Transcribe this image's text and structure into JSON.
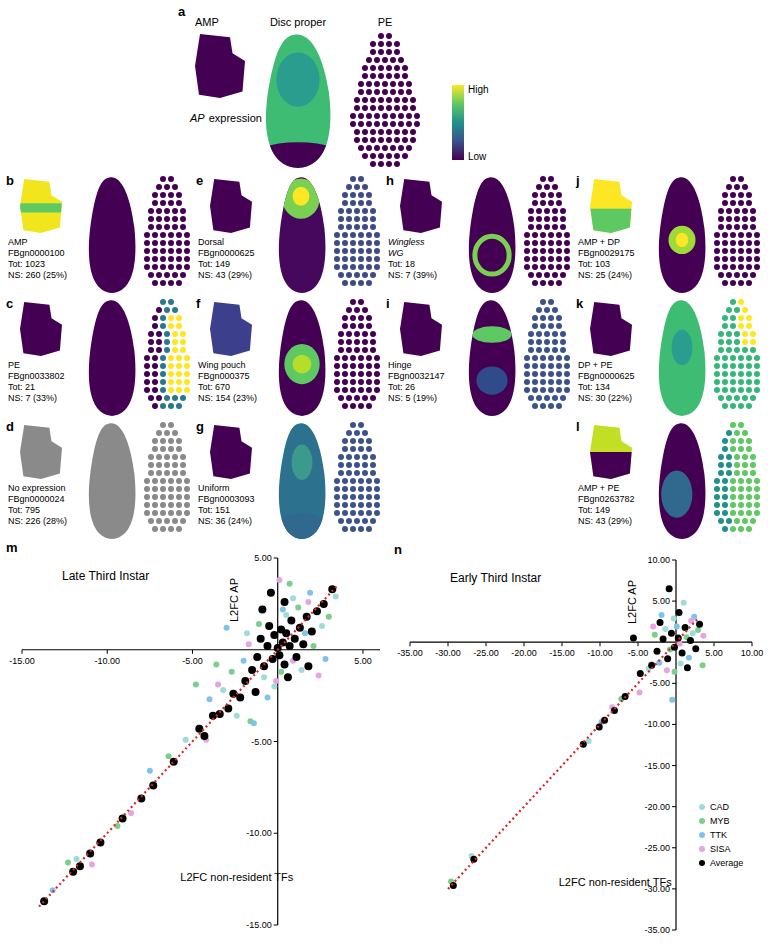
{
  "panel_a": {
    "letter": "a",
    "titles": [
      "AMP",
      "Disc proper",
      "PE"
    ],
    "caption": [
      "AP",
      "expression"
    ],
    "colorbar": [
      "High",
      "Low"
    ]
  },
  "panels": [
    {
      "letter": "b",
      "lines": [
        "AMP",
        "FBgn0000100",
        "Tot: 1023",
        "NS: 260 (25%)"
      ]
    },
    {
      "letter": "c",
      "lines": [
        "PE",
        "FBgn0033802",
        "Tot: 21",
        "NS: 7 (33%)"
      ]
    },
    {
      "letter": "d",
      "lines": [
        "No expression",
        "FBgn0000024",
        "Tot: 795",
        "NS: 226 (28%)"
      ]
    },
    {
      "letter": "e",
      "lines": [
        "Dorsal",
        "FBgn0000625",
        "Tot: 149",
        "NS: 43 (29%)"
      ]
    },
    {
      "letter": "f",
      "lines": [
        "Wing pouch",
        "FBgn000375",
        "Tot: 670",
        "NS: 154 (23%)"
      ]
    },
    {
      "letter": "g",
      "lines": [
        "Uniform",
        "FBgn0003093",
        "Tot: 151",
        "NS: 36 (24%)"
      ]
    },
    {
      "letter": "h",
      "lines": [
        "Wingless",
        "WG",
        "Tot: 18",
        "NS: 7 (39%)"
      ]
    },
    {
      "letter": "i",
      "lines": [
        "Hinge",
        "FBgn0032147",
        "Tot: 26",
        "NS: 5 (19%)"
      ]
    },
    {
      "letter": "j",
      "lines": [
        "AMP + DP",
        "FBgn0029175",
        "Tot: 103",
        "NS: 25 (24%)"
      ]
    },
    {
      "letter": "k",
      "lines": [
        "DP + PE",
        "FBgn0000625",
        "Tot: 134",
        "NS: 30 (22%)"
      ]
    },
    {
      "letter": "l",
      "lines": [
        "AMP + PE",
        "FBgn0263782",
        "Tot: 149",
        "NS: 43 (29%)"
      ]
    }
  ],
  "chart_data": [
    {
      "type": "scatter",
      "label": "m",
      "title": "Late Third Instar",
      "xlabel": "L2FC non-resident TFs",
      "ylabel": "L2FC AP",
      "xlim": [
        -15,
        6
      ],
      "ylim": [
        -15,
        5
      ],
      "xticks": [
        {
          "value": -15,
          "label": "-15.00"
        },
        {
          "value": -10,
          "label": "-10.00"
        },
        {
          "value": -5,
          "label": "-5.00"
        },
        {
          "value": 5,
          "label": "5.00"
        }
      ],
      "yticks": [
        {
          "value": 5,
          "label": "5.00"
        },
        {
          "value": -5,
          "label": "-5.00"
        },
        {
          "value": -10,
          "label": "-10.00"
        },
        {
          "value": -15,
          "label": "-15.00"
        }
      ],
      "series": [
        {
          "name": "CAD",
          "color": "#9fdcd8",
          "marker": "circle",
          "x": [
            -3.2,
            -1.8,
            -0.8,
            0.5,
            1.4,
            2.6,
            -5.4,
            -11.8,
            -2.4,
            0.9,
            -0.2,
            3.4
          ],
          "values": [
            -2.2,
            0.9,
            -1.5,
            1.9,
            -1.1,
            1.3,
            -4.9,
            -11.4,
            -3.6,
            2.8,
            -2,
            2.9
          ]
        },
        {
          "name": "MYB",
          "color": "#7ccf8a",
          "marker": "circle",
          "x": [
            -4.8,
            -3.6,
            -2.7,
            -1.1,
            0.2,
            1.2,
            2.1,
            -6.4,
            -9.4,
            -12.3,
            -1.6,
            0.7,
            3
          ],
          "values": [
            -1.9,
            -0.8,
            -1.2,
            1.4,
            -1.2,
            2.3,
            0.2,
            -5.8,
            -9.6,
            -11.6,
            -3.9,
            3.6,
            1.8
          ]
        },
        {
          "name": "TTK",
          "color": "#7fc3ec",
          "marker": "circle",
          "x": [
            -4,
            -2,
            -0.6,
            0.3,
            1.6,
            2.8,
            -7.5,
            -13.2,
            -3,
            1.9,
            -1.4
          ],
          "values": [
            -2.7,
            -0.6,
            -2.6,
            2.2,
            0.9,
            -0.5,
            -6.6,
            -13.1,
            1.2,
            3.1,
            -4
          ]
        },
        {
          "name": "SISA",
          "color": "#e6a4e3",
          "marker": "circle",
          "x": [
            -3.5,
            -1.7,
            -0.1,
            0.9,
            1.8,
            2.4,
            -8.6,
            -10.9,
            -4.2,
            0.1
          ],
          "values": [
            -1.9,
            0.3,
            -1.7,
            -0.6,
            2.6,
            -1.4,
            -8.9,
            -11.7,
            -4.9,
            3.8
          ]
        },
        {
          "name": "Average",
          "color": "#000000",
          "marker": "circle",
          "x": [
            -13.7,
            -12,
            -11.6,
            -11,
            -10.4,
            -9.1,
            -8,
            -7.3,
            -6.1,
            -4.6,
            -4.3,
            -3.8,
            -3.4,
            -2.9,
            -2.6,
            -2.2,
            -1.9,
            -1.5,
            -1.2,
            -1,
            -0.8,
            -0.6,
            -0.5,
            -0.3,
            -0.2,
            0,
            0.1,
            0.2,
            0.3,
            0.4,
            0.5,
            0.7,
            0.8,
            1,
            1.1,
            1.3,
            1.5,
            1.7,
            2,
            2.3,
            2.7,
            3.2,
            -0.9,
            0.4,
            -1.3,
            0.6,
            1.8,
            -0.4
          ],
          "values": [
            -13.7,
            -12.1,
            -11.8,
            -11.1,
            -10.5,
            -9.2,
            -8.1,
            -7.4,
            -6.1,
            -4.3,
            -4.7,
            -3.6,
            -3.5,
            -3.2,
            -2.4,
            -2.6,
            -1.7,
            -1.1,
            -0.4,
            0.6,
            -0.9,
            0.2,
            1.3,
            -0.5,
            0.8,
            0.1,
            -0.3,
            1.1,
            0.4,
            -0.8,
            0.9,
            0.2,
            1.6,
            0.6,
            -0.4,
            1.2,
            0.3,
            1.8,
            1,
            2.1,
            2.5,
            3.3,
            2.2,
            2.6,
            -2.3,
            -1.5,
            -0.9,
            3.1
          ]
        },
        {
          "type": "line",
          "color": "#d62728",
          "line_style": "dotted",
          "x": [
            -14,
            3.5
          ],
          "values": [
            -14,
            3.5
          ]
        }
      ]
    },
    {
      "type": "scatter",
      "label": "n",
      "title": "Early Third Instar",
      "xlabel": "L2FC non-resident TFs",
      "ylabel": "L2FC AP",
      "xlim": [
        -35,
        10
      ],
      "ylim": [
        -35,
        10
      ],
      "legend": "right",
      "xticks": [
        {
          "value": -35,
          "label": "-35.00"
        },
        {
          "value": -30,
          "label": "-30.00"
        },
        {
          "value": -25,
          "label": "-25.00"
        },
        {
          "value": -20,
          "label": "-20.00"
        },
        {
          "value": -15,
          "label": "-15.00"
        },
        {
          "value": -10,
          "label": "-10.00"
        },
        {
          "value": -5,
          "label": "-5.00"
        },
        {
          "value": 5,
          "label": "5.00"
        },
        {
          "value": 10,
          "label": "10.00"
        }
      ],
      "yticks": [
        {
          "value": 10,
          "label": "10.00"
        },
        {
          "value": 5,
          "label": "5.00"
        },
        {
          "value": -5,
          "label": "-5.00"
        },
        {
          "value": -10,
          "label": "-10.00"
        },
        {
          "value": -15,
          "label": "-15.00"
        },
        {
          "value": -20,
          "label": "-20.00"
        },
        {
          "value": -25,
          "label": "-25.00"
        },
        {
          "value": -30,
          "label": "-30.00"
        },
        {
          "value": -35,
          "label": "-35.00"
        }
      ],
      "series": [
        {
          "name": "CAD",
          "color": "#9fdcd8",
          "marker": "circle",
          "x": [
            -3.6,
            -1.4,
            0.6,
            2.2,
            -0.3,
            -11.5,
            -26.9,
            1
          ],
          "values": [
            -3.2,
            1.6,
            -2.6,
            1.1,
            2.9,
            -12,
            -26,
            4.8
          ]
        },
        {
          "name": "MYB",
          "color": "#7ccf8a",
          "marker": "circle",
          "x": [
            -2.8,
            -0.8,
            1.4,
            2.9,
            -7.2,
            -0.2,
            3.5,
            -29.6
          ],
          "values": [
            0.9,
            -0.9,
            0.6,
            1.5,
            -6.9,
            -3.6,
            -2.8,
            -29.1
          ]
        },
        {
          "name": "TTK",
          "color": "#7fc3ec",
          "marker": "circle",
          "x": [
            -2.2,
            0.1,
            1.7,
            -1.9,
            -9.8,
            2.4,
            -0.5
          ],
          "values": [
            -2.5,
            1.9,
            -1.9,
            3.3,
            -9.7,
            3.1,
            -7
          ]
        },
        {
          "name": "SISA",
          "color": "#e6a4e3",
          "marker": "circle",
          "x": [
            -3,
            -1.2,
            0.5,
            2,
            -8.4,
            -4.8,
            3.6
          ],
          "values": [
            1.9,
            -3.4,
            -0.2,
            2.6,
            -7.9,
            -6.1,
            0.8
          ]
        },
        {
          "name": "Average",
          "color": "#000000",
          "marker": "circle",
          "x": [
            -29.3,
            -26.6,
            -12.2,
            -10.1,
            -9.4,
            -8.1,
            -6.7,
            -4.7,
            -3.2,
            -2.5,
            -1.7,
            -1.1,
            -0.6,
            -0.2,
            0.3,
            0.8,
            1.2,
            1.9,
            2.6,
            3.1,
            -0.9,
            0.4,
            -2.1,
            1.5,
            -5.6
          ],
          "values": [
            -29.6,
            -26.4,
            -12.4,
            -10.3,
            -9.5,
            -8.3,
            -6.6,
            -3.8,
            -2.8,
            -1.1,
            0.4,
            -2,
            1.1,
            -0.6,
            0.5,
            -1.3,
            1.8,
            0.2,
            -0.8,
            2.2,
            6.5,
            3.6,
            2.4,
            -3.1,
            0.5
          ]
        },
        {
          "type": "line",
          "color": "#d62728",
          "line_style": "dotted",
          "x": [
            -30,
            3
          ],
          "values": [
            -30,
            3
          ]
        }
      ]
    }
  ]
}
